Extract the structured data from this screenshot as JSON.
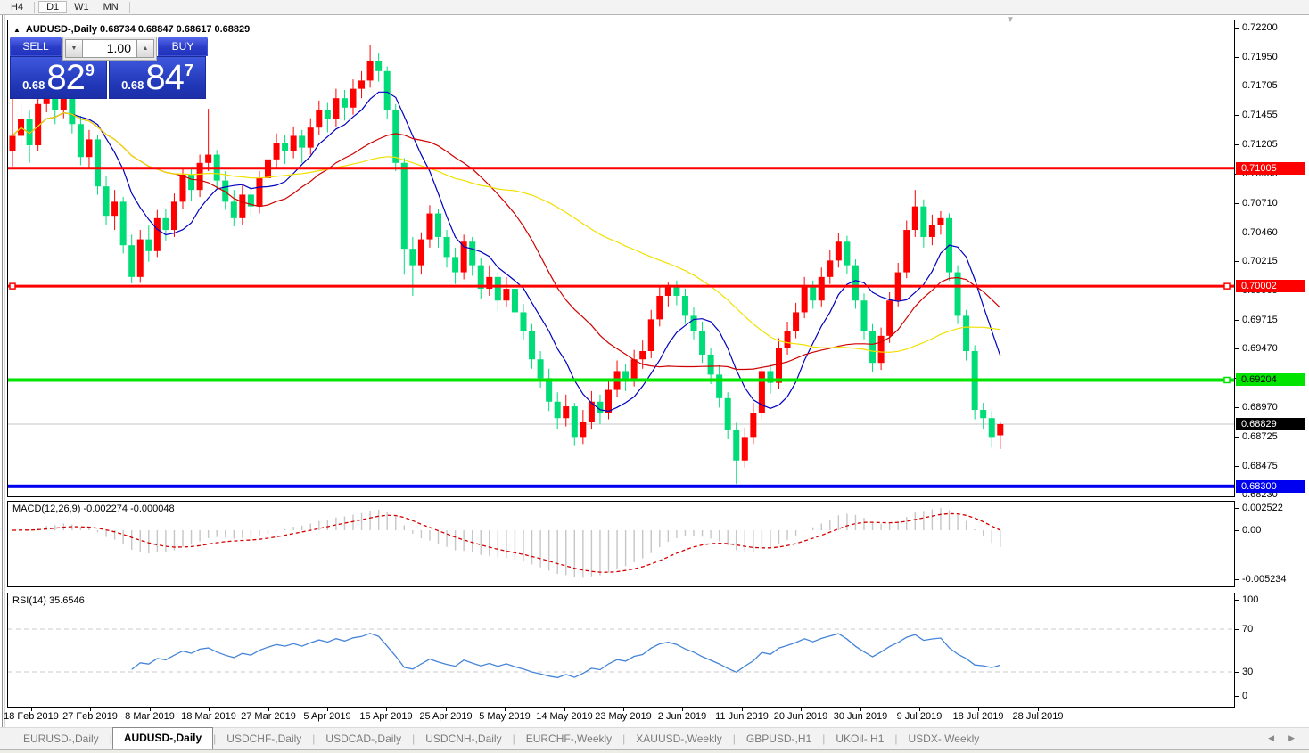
{
  "window": {
    "toolbar": {
      "timeframes": [
        {
          "label": "H4",
          "active": false
        },
        {
          "label": "D1",
          "active": true
        },
        {
          "label": "W1",
          "active": false
        },
        {
          "label": "MN",
          "active": false
        }
      ]
    },
    "chart_title": "AUDUSD-,Daily  0.68734 0.68847 0.68617 0.68829",
    "trade_panel": {
      "sell_label": "SELL",
      "buy_label": "BUY",
      "volume": "1.00",
      "sell_price": {
        "prefix": "0.68",
        "big": "82",
        "pip": "9"
      },
      "buy_price": {
        "prefix": "0.68",
        "big": "84",
        "pip": "7"
      }
    },
    "icons": {
      "panel_collapse": "▲",
      "autoscroll": "▼",
      "spinner_down": "▼",
      "spinner_up": "▲",
      "tabs_left": "◀",
      "tabs_right": "▶"
    },
    "tabs": [
      "EURUSD-,Daily",
      "AUDUSD-,Daily",
      "USDCHF-,Daily",
      "USDCAD-,Daily",
      "USDCNH-,Daily",
      "EURCHF-,Weekly",
      "XAUUSD-,Weekly",
      "GBPUSD-,H1",
      "UKOil-,H1",
      "USDX-,Weekly"
    ],
    "active_tab_index": 1
  },
  "chart_data": {
    "type": "candlestick",
    "symbol": "AUDUSD-",
    "timeframe": "Daily",
    "ohlc_display": {
      "open": "0.68734",
      "high": "0.68847",
      "low": "0.68617",
      "close": "0.68829"
    },
    "up_color": "#FF0000",
    "down_color": "#00DC78",
    "current_price": {
      "value": 0.68829,
      "label": "0.68829",
      "bg": "#000000",
      "text": "#FFFFFF",
      "line_color": "#C4C4C4"
    },
    "price_axis_ticks": [
      "0.72200",
      "0.71950",
      "0.71705",
      "0.71455",
      "0.71205",
      "0.70960",
      "0.70710",
      "0.70460",
      "0.70215",
      "0.69965",
      "0.69715",
      "0.69470",
      "0.69220",
      "0.68970",
      "0.68725",
      "0.68475",
      "0.68230"
    ],
    "date_ticks": [
      "18 Feb 2019",
      "27 Feb 2019",
      "8 Mar 2019",
      "18 Mar 2019",
      "27 Mar 2019",
      "5 Apr 2019",
      "15 Apr 2019",
      "25 Apr 2019",
      "5 May 2019",
      "14 May 2019",
      "23 May 2019",
      "2 Jun 2019",
      "11 Jun 2019",
      "20 Jun 2019",
      "30 Jun 2019",
      "9 Jul 2019",
      "18 Jul 2019",
      "28 Jul 2019"
    ],
    "horizontal_lines": [
      {
        "price": 0.71005,
        "label": "0.71005",
        "color": "#FF0000",
        "text": "#FFFFFF",
        "width": 3,
        "handles": []
      },
      {
        "price": 0.70002,
        "label": "0.70002",
        "color": "#FF0000",
        "text": "#FFFFFF",
        "width": 3,
        "handles": [
          "left",
          "right"
        ]
      },
      {
        "price": 0.69204,
        "label": "0.69204",
        "color": "#00E400",
        "text": "#000000",
        "width": 4,
        "handles": [
          "right"
        ]
      },
      {
        "price": 0.683,
        "label": "0.68300",
        "color": "#0000F0",
        "text": "#FFFFFF",
        "width": 4,
        "handles": []
      }
    ],
    "moving_averages": [
      {
        "period": 8,
        "color": "#0000C0"
      },
      {
        "period": 20,
        "color": "#D00000"
      },
      {
        "period": 45,
        "color": "#F0E000"
      }
    ],
    "indicators": [
      {
        "name": "MACD",
        "label": "MACD(12,26,9) -0.002274 -0.000048",
        "fast": 12,
        "slow": 26,
        "signal": 9,
        "main_value": "-0.002274",
        "signal_value": "-0.000048",
        "axis_ticks": [
          {
            "text": "0.002522",
            "value": 0.002522
          },
          {
            "text": "0.00",
            "value": 0.0
          },
          {
            "text": "-0.005234",
            "value": -0.005234
          }
        ],
        "histogram_color": "#C6C6C6",
        "signal_color": "#D40000"
      },
      {
        "name": "RSI",
        "label": "RSI(14) 35.6546",
        "period": 14,
        "value": "35.6546",
        "axis_ticks": [
          {
            "text": "100",
            "value": 100
          },
          {
            "text": "70",
            "value": 70
          },
          {
            "text": "30",
            "value": 30
          },
          {
            "text": "0",
            "value": 0
          }
        ],
        "levels": [
          70,
          30
        ],
        "level_color": "#C8C8C8",
        "line_color": "#4584D8"
      }
    ],
    "candles": [
      [
        0.7115,
        0.7176,
        0.7102,
        0.7128
      ],
      [
        0.7128,
        0.7156,
        0.7118,
        0.7142
      ],
      [
        0.7142,
        0.715,
        0.7105,
        0.712
      ],
      [
        0.712,
        0.7162,
        0.7115,
        0.7155
      ],
      [
        0.7155,
        0.7175,
        0.7148,
        0.7168
      ],
      [
        0.7168,
        0.7174,
        0.7138,
        0.715
      ],
      [
        0.715,
        0.7176,
        0.7143,
        0.717
      ],
      [
        0.717,
        0.7175,
        0.713,
        0.7138
      ],
      [
        0.7138,
        0.7145,
        0.7103,
        0.711
      ],
      [
        0.711,
        0.7133,
        0.7101,
        0.7125
      ],
      [
        0.7125,
        0.7129,
        0.7078,
        0.7085
      ],
      [
        0.7085,
        0.7094,
        0.7052,
        0.706
      ],
      [
        0.706,
        0.7082,
        0.7048,
        0.7072
      ],
      [
        0.7072,
        0.7076,
        0.7028,
        0.7035
      ],
      [
        0.7035,
        0.7044,
        0.70026,
        0.7008
      ],
      [
        0.7008,
        0.7048,
        0.7003,
        0.704
      ],
      [
        0.704,
        0.7052,
        0.7021,
        0.703
      ],
      [
        0.703,
        0.7065,
        0.7025,
        0.7058
      ],
      [
        0.7058,
        0.7066,
        0.7039,
        0.7048
      ],
      [
        0.7048,
        0.7079,
        0.7042,
        0.7072
      ],
      [
        0.7072,
        0.7101,
        0.7066,
        0.7095
      ],
      [
        0.7095,
        0.71,
        0.7073,
        0.7082
      ],
      [
        0.7082,
        0.7112,
        0.7076,
        0.7105
      ],
      [
        0.7105,
        0.7151,
        0.7098,
        0.7112
      ],
      [
        0.7112,
        0.7116,
        0.7083,
        0.709
      ],
      [
        0.709,
        0.7098,
        0.7065,
        0.7072
      ],
      [
        0.7072,
        0.7082,
        0.7051,
        0.7058
      ],
      [
        0.7058,
        0.7086,
        0.7052,
        0.7078
      ],
      [
        0.7078,
        0.7085,
        0.7059,
        0.7068
      ],
      [
        0.7068,
        0.7098,
        0.7062,
        0.7092
      ],
      [
        0.7092,
        0.7116,
        0.7087,
        0.7108
      ],
      [
        0.7108,
        0.713,
        0.7101,
        0.7122
      ],
      [
        0.7122,
        0.7129,
        0.7104,
        0.7115
      ],
      [
        0.7115,
        0.7136,
        0.7109,
        0.7128
      ],
      [
        0.7128,
        0.7133,
        0.7105,
        0.7118
      ],
      [
        0.7118,
        0.7143,
        0.7112,
        0.7135
      ],
      [
        0.7135,
        0.7158,
        0.7129,
        0.715
      ],
      [
        0.715,
        0.7156,
        0.7131,
        0.7142
      ],
      [
        0.7142,
        0.7168,
        0.7136,
        0.716
      ],
      [
        0.716,
        0.7167,
        0.7141,
        0.7152
      ],
      [
        0.7152,
        0.7176,
        0.7146,
        0.7168
      ],
      [
        0.7168,
        0.7183,
        0.716,
        0.7175
      ],
      [
        0.7175,
        0.7205,
        0.7169,
        0.7192
      ],
      [
        0.7192,
        0.7198,
        0.7174,
        0.7183
      ],
      [
        0.7183,
        0.7187,
        0.7142,
        0.715
      ],
      [
        0.715,
        0.7155,
        0.7098,
        0.7105
      ],
      [
        0.7105,
        0.7109,
        0.701,
        0.7032
      ],
      [
        0.7032,
        0.7042,
        0.6992,
        0.7018
      ],
      [
        0.7018,
        0.7046,
        0.701,
        0.704
      ],
      [
        0.704,
        0.7069,
        0.7033,
        0.7062
      ],
      [
        0.7062,
        0.7066,
        0.7033,
        0.7042
      ],
      [
        0.7042,
        0.7048,
        0.7016,
        0.7025
      ],
      [
        0.7025,
        0.7033,
        0.7002,
        0.7012
      ],
      [
        0.7012,
        0.7044,
        0.7006,
        0.7038
      ],
      [
        0.7038,
        0.7042,
        0.7009,
        0.7018
      ],
      [
        0.7018,
        0.7024,
        0.6989,
        0.6998
      ],
      [
        0.6998,
        0.7018,
        0.6992,
        0.7008
      ],
      [
        0.7008,
        0.7012,
        0.6979,
        0.6988
      ],
      [
        0.6988,
        0.7008,
        0.6982,
        0.6998
      ],
      [
        0.6998,
        0.7003,
        0.697,
        0.6978
      ],
      [
        0.6978,
        0.6985,
        0.6954,
        0.6962
      ],
      [
        0.6962,
        0.6968,
        0.693,
        0.6938
      ],
      [
        0.6938,
        0.6945,
        0.6914,
        0.6922
      ],
      [
        0.6922,
        0.693,
        0.6894,
        0.6902
      ],
      [
        0.6902,
        0.691,
        0.6879,
        0.6888
      ],
      [
        0.6888,
        0.6908,
        0.6881,
        0.6898
      ],
      [
        0.6898,
        0.6901,
        0.6865,
        0.6872
      ],
      [
        0.6872,
        0.6895,
        0.6866,
        0.6885
      ],
      [
        0.6885,
        0.6911,
        0.6879,
        0.6902
      ],
      [
        0.6902,
        0.6908,
        0.6883,
        0.6892
      ],
      [
        0.6892,
        0.6921,
        0.6887,
        0.6912
      ],
      [
        0.6912,
        0.6937,
        0.6906,
        0.6928
      ],
      [
        0.6928,
        0.6934,
        0.6911,
        0.692
      ],
      [
        0.692,
        0.6946,
        0.6915,
        0.6938
      ],
      [
        0.6938,
        0.6954,
        0.693,
        0.6945
      ],
      [
        0.6945,
        0.698,
        0.6939,
        0.6972
      ],
      [
        0.6972,
        0.7,
        0.6966,
        0.6992
      ],
      [
        0.6992,
        0.70032,
        0.6983,
        0.7
      ],
      [
        0.7,
        0.7005,
        0.6984,
        0.6992
      ],
      [
        0.6992,
        0.6998,
        0.6968,
        0.6975
      ],
      [
        0.6975,
        0.6982,
        0.6955,
        0.6962
      ],
      [
        0.6962,
        0.697,
        0.6935,
        0.6942
      ],
      [
        0.6942,
        0.6948,
        0.6917,
        0.6925
      ],
      [
        0.6925,
        0.6933,
        0.6897,
        0.6905
      ],
      [
        0.6905,
        0.691,
        0.687,
        0.6878
      ],
      [
        0.6878,
        0.6884,
        0.6832,
        0.6852
      ],
      [
        0.6852,
        0.688,
        0.6846,
        0.6872
      ],
      [
        0.6872,
        0.6901,
        0.6866,
        0.6892
      ],
      [
        0.6892,
        0.6935,
        0.6887,
        0.6928
      ],
      [
        0.6928,
        0.6934,
        0.6909,
        0.6918
      ],
      [
        0.6918,
        0.6956,
        0.6913,
        0.6948
      ],
      [
        0.6948,
        0.697,
        0.6942,
        0.6962
      ],
      [
        0.6962,
        0.6986,
        0.6956,
        0.6978
      ],
      [
        0.6978,
        0.7008,
        0.6973,
        0.7
      ],
      [
        0.7,
        0.7005,
        0.6981,
        0.6988
      ],
      [
        0.6988,
        0.7016,
        0.6983,
        0.7008
      ],
      [
        0.7008,
        0.7031,
        0.7002,
        0.7022
      ],
      [
        0.7022,
        0.7045,
        0.7016,
        0.7038
      ],
      [
        0.7038,
        0.7043,
        0.7011,
        0.7018
      ],
      [
        0.7018,
        0.7023,
        0.6981,
        0.6988
      ],
      [
        0.6988,
        0.6994,
        0.6955,
        0.6962
      ],
      [
        0.6962,
        0.6968,
        0.6927,
        0.6935
      ],
      [
        0.6935,
        0.6965,
        0.6929,
        0.6958
      ],
      [
        0.6958,
        0.6995,
        0.6952,
        0.6988
      ],
      [
        0.6988,
        0.702,
        0.6983,
        0.7012
      ],
      [
        0.7012,
        0.7056,
        0.7007,
        0.7048
      ],
      [
        0.7048,
        0.7082,
        0.7042,
        0.7068
      ],
      [
        0.7068,
        0.7074,
        0.7033,
        0.7042
      ],
      [
        0.7042,
        0.7061,
        0.7035,
        0.7052
      ],
      [
        0.7052,
        0.7064,
        0.7044,
        0.7058
      ],
      [
        0.7058,
        0.7062,
        0.7005,
        0.7012
      ],
      [
        0.7012,
        0.7018,
        0.6968,
        0.6975
      ],
      [
        0.6975,
        0.698,
        0.6937,
        0.6945
      ],
      [
        0.6945,
        0.695,
        0.6887,
        0.6895
      ],
      [
        0.6895,
        0.6901,
        0.6879,
        0.6888
      ],
      [
        0.6888,
        0.6894,
        0.6863,
        0.6872
      ],
      [
        0.68734,
        0.68847,
        0.68617,
        0.68829
      ]
    ]
  }
}
